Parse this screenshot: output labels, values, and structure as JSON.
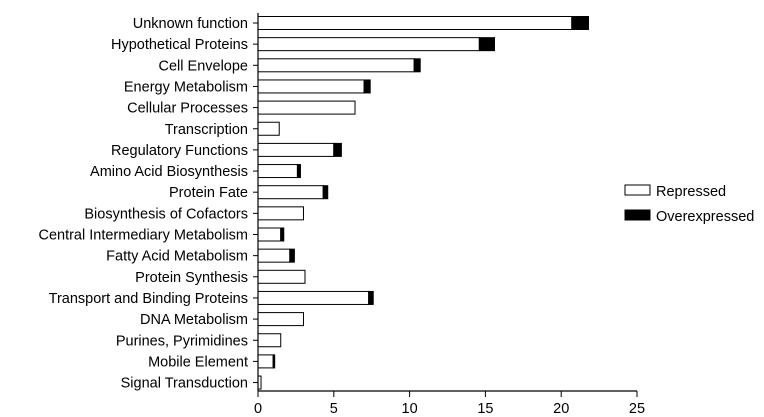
{
  "chart_data": {
    "type": "bar",
    "orientation": "horizontal",
    "stacked": true,
    "title": "",
    "xlabel": "",
    "ylabel": "",
    "categories": [
      "Unknown function",
      "Hypothetical Proteins",
      "Cell Envelope",
      "Energy Metabolism",
      "Cellular Processes",
      "Transcription",
      "Regulatory Functions",
      "Amino Acid Biosynthesis",
      "Protein Fate",
      "Biosynthesis of Cofactors",
      "Central Intermediary Metabolism",
      "Fatty Acid Metabolism",
      "Protein Synthesis",
      "Transport and Binding Proteins",
      "DNA Metabolism",
      "Purines, Pyrimidines",
      "Mobile Element",
      "Signal Transduction"
    ],
    "series": [
      {
        "name": "Repressed",
        "color": "#ffffff",
        "values": [
          20.7,
          14.6,
          10.3,
          7.0,
          6.4,
          1.4,
          5.0,
          2.6,
          4.3,
          3.0,
          1.5,
          2.1,
          3.1,
          7.3,
          3.0,
          1.5,
          1.0,
          0.2
        ]
      },
      {
        "name": "Overexpressed",
        "color": "#000000",
        "values": [
          1.1,
          1.0,
          0.4,
          0.4,
          0.0,
          0.0,
          0.5,
          0.2,
          0.3,
          0.0,
          0.2,
          0.3,
          0.0,
          0.3,
          0.0,
          0.0,
          0.1,
          0.0
        ]
      }
    ],
    "xlim": [
      0,
      25
    ],
    "xticks": [
      "0",
      "5",
      "10",
      "15",
      "20",
      "25"
    ],
    "grid": false,
    "legend_position": "right"
  }
}
